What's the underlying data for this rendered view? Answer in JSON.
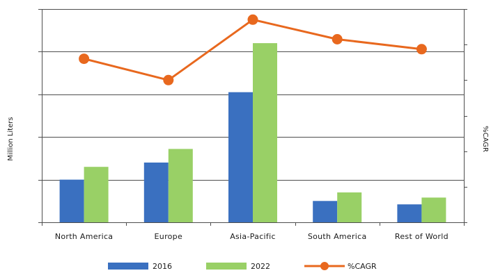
{
  "chart_data": {
    "type": "bar",
    "categories": [
      "North America",
      "Europe",
      "Asia-Pacific",
      "South America",
      "Rest of World"
    ],
    "series": [
      {
        "name": "2016",
        "kind": "bar",
        "axis": "left",
        "color": "#3a70c0",
        "values": [
          1.0,
          1.4,
          3.05,
          0.5,
          0.42
        ]
      },
      {
        "name": "2022",
        "kind": "bar",
        "axis": "left",
        "color": "#99d066",
        "values": [
          1.3,
          1.72,
          4.2,
          0.7,
          0.58
        ]
      },
      {
        "name": "%CAGR",
        "kind": "line",
        "axis": "right",
        "color": "#e8681e",
        "values": [
          4.6,
          4.0,
          5.7,
          5.15,
          4.87
        ]
      }
    ],
    "ylabel": "Million Liters",
    "y2label": "%CAGR",
    "ylim": [
      0,
      5
    ],
    "y2lim": [
      0,
      6
    ],
    "y_tick_count": 6,
    "y2_tick_count": 7,
    "show_tick_labels": false,
    "grid": "horizontal",
    "legend_position": "bottom"
  }
}
